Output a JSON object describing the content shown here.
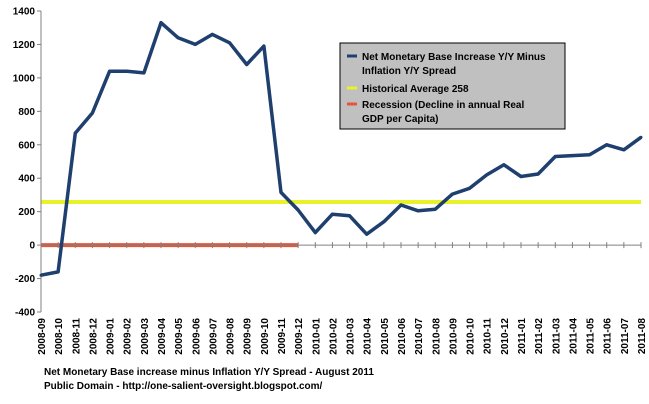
{
  "chart_data": {
    "type": "line",
    "categories": [
      "2008-09",
      "2008-10",
      "2008-11",
      "2008-12",
      "2009-01",
      "2009-02",
      "2009-03",
      "2009-04",
      "2009-05",
      "2009-06",
      "2009-07",
      "2009-08",
      "2009-09",
      "2009-10",
      "2009-11",
      "2009-12",
      "2010-01",
      "2010-02",
      "2010-03",
      "2010-04",
      "2010-05",
      "2010-06",
      "2010-07",
      "2010-08",
      "2010-09",
      "2010-10",
      "2010-11",
      "2010-12",
      "2011-01",
      "2011-02",
      "2011-03",
      "2011-04",
      "2011-05",
      "2011-06",
      "2011-07",
      "2011-08"
    ],
    "series": [
      {
        "name": "Net Monetary Base Increase Y/Y Minus Inflation Y/Y Spread",
        "color": "#1f3f6e",
        "values": [
          -180,
          -160,
          670,
          790,
          1040,
          1040,
          1030,
          1330,
          1240,
          1200,
          1260,
          1210,
          1080,
          1190,
          315,
          210,
          75,
          185,
          175,
          65,
          140,
          240,
          205,
          215,
          305,
          340,
          420,
          480,
          410,
          425,
          530,
          535,
          540,
          600,
          570,
          645
        ]
      }
    ],
    "reference_lines": [
      {
        "name": "Historical Average 258",
        "value": 258,
        "color": "#e8f22a"
      },
      {
        "name": "Recession (Decline in annual Real GDP per Capita)",
        "value": 0,
        "start": "2008-09",
        "end": "2009-12",
        "color": "#e8543a"
      }
    ],
    "ylim": [
      -400,
      1400
    ],
    "yticks": [
      "1400",
      "1200",
      "1000",
      "800",
      "600",
      "400",
      "200",
      "0",
      "-200",
      "-400"
    ],
    "grid": false,
    "legend_position": "top-right",
    "legend": {
      "series_lines": [
        "Net Monetary Base Increase Y/Y Minus",
        "Inflation Y/Y Spread"
      ],
      "average_lines": [
        "Historical Average 258"
      ],
      "recession_lines": [
        "Recession (Decline in annual Real",
        "GDP per Capita)"
      ]
    }
  },
  "caption": {
    "line1": "Net Monetary Base increase minus Inflation Y/Y Spread - August 2011",
    "line2": "Public Domain - http://one-salient-oversight.blogspot.com/"
  }
}
